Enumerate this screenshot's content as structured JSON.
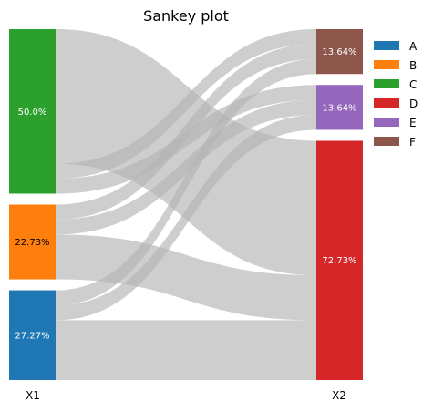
{
  "chart_data": {
    "type": "sankey",
    "title": "Sankey plot",
    "axes": [
      "X1",
      "X2"
    ],
    "left_nodes": [
      {
        "name": "C",
        "percent_label": "50.0%",
        "value": 50.0,
        "color": "#2ca02c",
        "label_color": "#ffffff"
      },
      {
        "name": "B",
        "percent_label": "22.73%",
        "value": 22.73,
        "color": "#ff7f0e",
        "label_color": "#000000"
      },
      {
        "name": "A",
        "percent_label": "27.27%",
        "value": 27.27,
        "color": "#1f77b4",
        "label_color": "#ffffff"
      }
    ],
    "right_nodes": [
      {
        "name": "F",
        "percent_label": "13.64%",
        "value": 13.64,
        "color": "#8c564b",
        "label_color": "#ffffff"
      },
      {
        "name": "E",
        "percent_label": "13.64%",
        "value": 13.64,
        "color": "#9467bd",
        "label_color": "#ffffff"
      },
      {
        "name": "D",
        "percent_label": "72.73%",
        "value": 72.73,
        "color": "#d62728",
        "label_color": "#ffffff"
      }
    ],
    "flows": [
      {
        "source": "C",
        "target": "D",
        "value": 40.91
      },
      {
        "source": "C",
        "target": "F",
        "value": 4.55
      },
      {
        "source": "C",
        "target": "E",
        "value": 4.55
      },
      {
        "source": "B",
        "target": "F",
        "value": 4.55
      },
      {
        "source": "B",
        "target": "E",
        "value": 4.55
      },
      {
        "source": "B",
        "target": "D",
        "value": 13.64
      },
      {
        "source": "A",
        "target": "F",
        "value": 4.55
      },
      {
        "source": "A",
        "target": "E",
        "value": 4.55
      },
      {
        "source": "A",
        "target": "D",
        "value": 18.18
      }
    ],
    "legend": {
      "placement": "top-right",
      "entries": [
        {
          "label": "A",
          "color": "#1f77b4"
        },
        {
          "label": "B",
          "color": "#ff7f0e"
        },
        {
          "label": "C",
          "color": "#2ca02c"
        },
        {
          "label": "D",
          "color": "#d62728"
        },
        {
          "label": "E",
          "color": "#9467bd"
        },
        {
          "label": "F",
          "color": "#8c564b"
        }
      ]
    },
    "flow_color": "#b3b3b3"
  }
}
